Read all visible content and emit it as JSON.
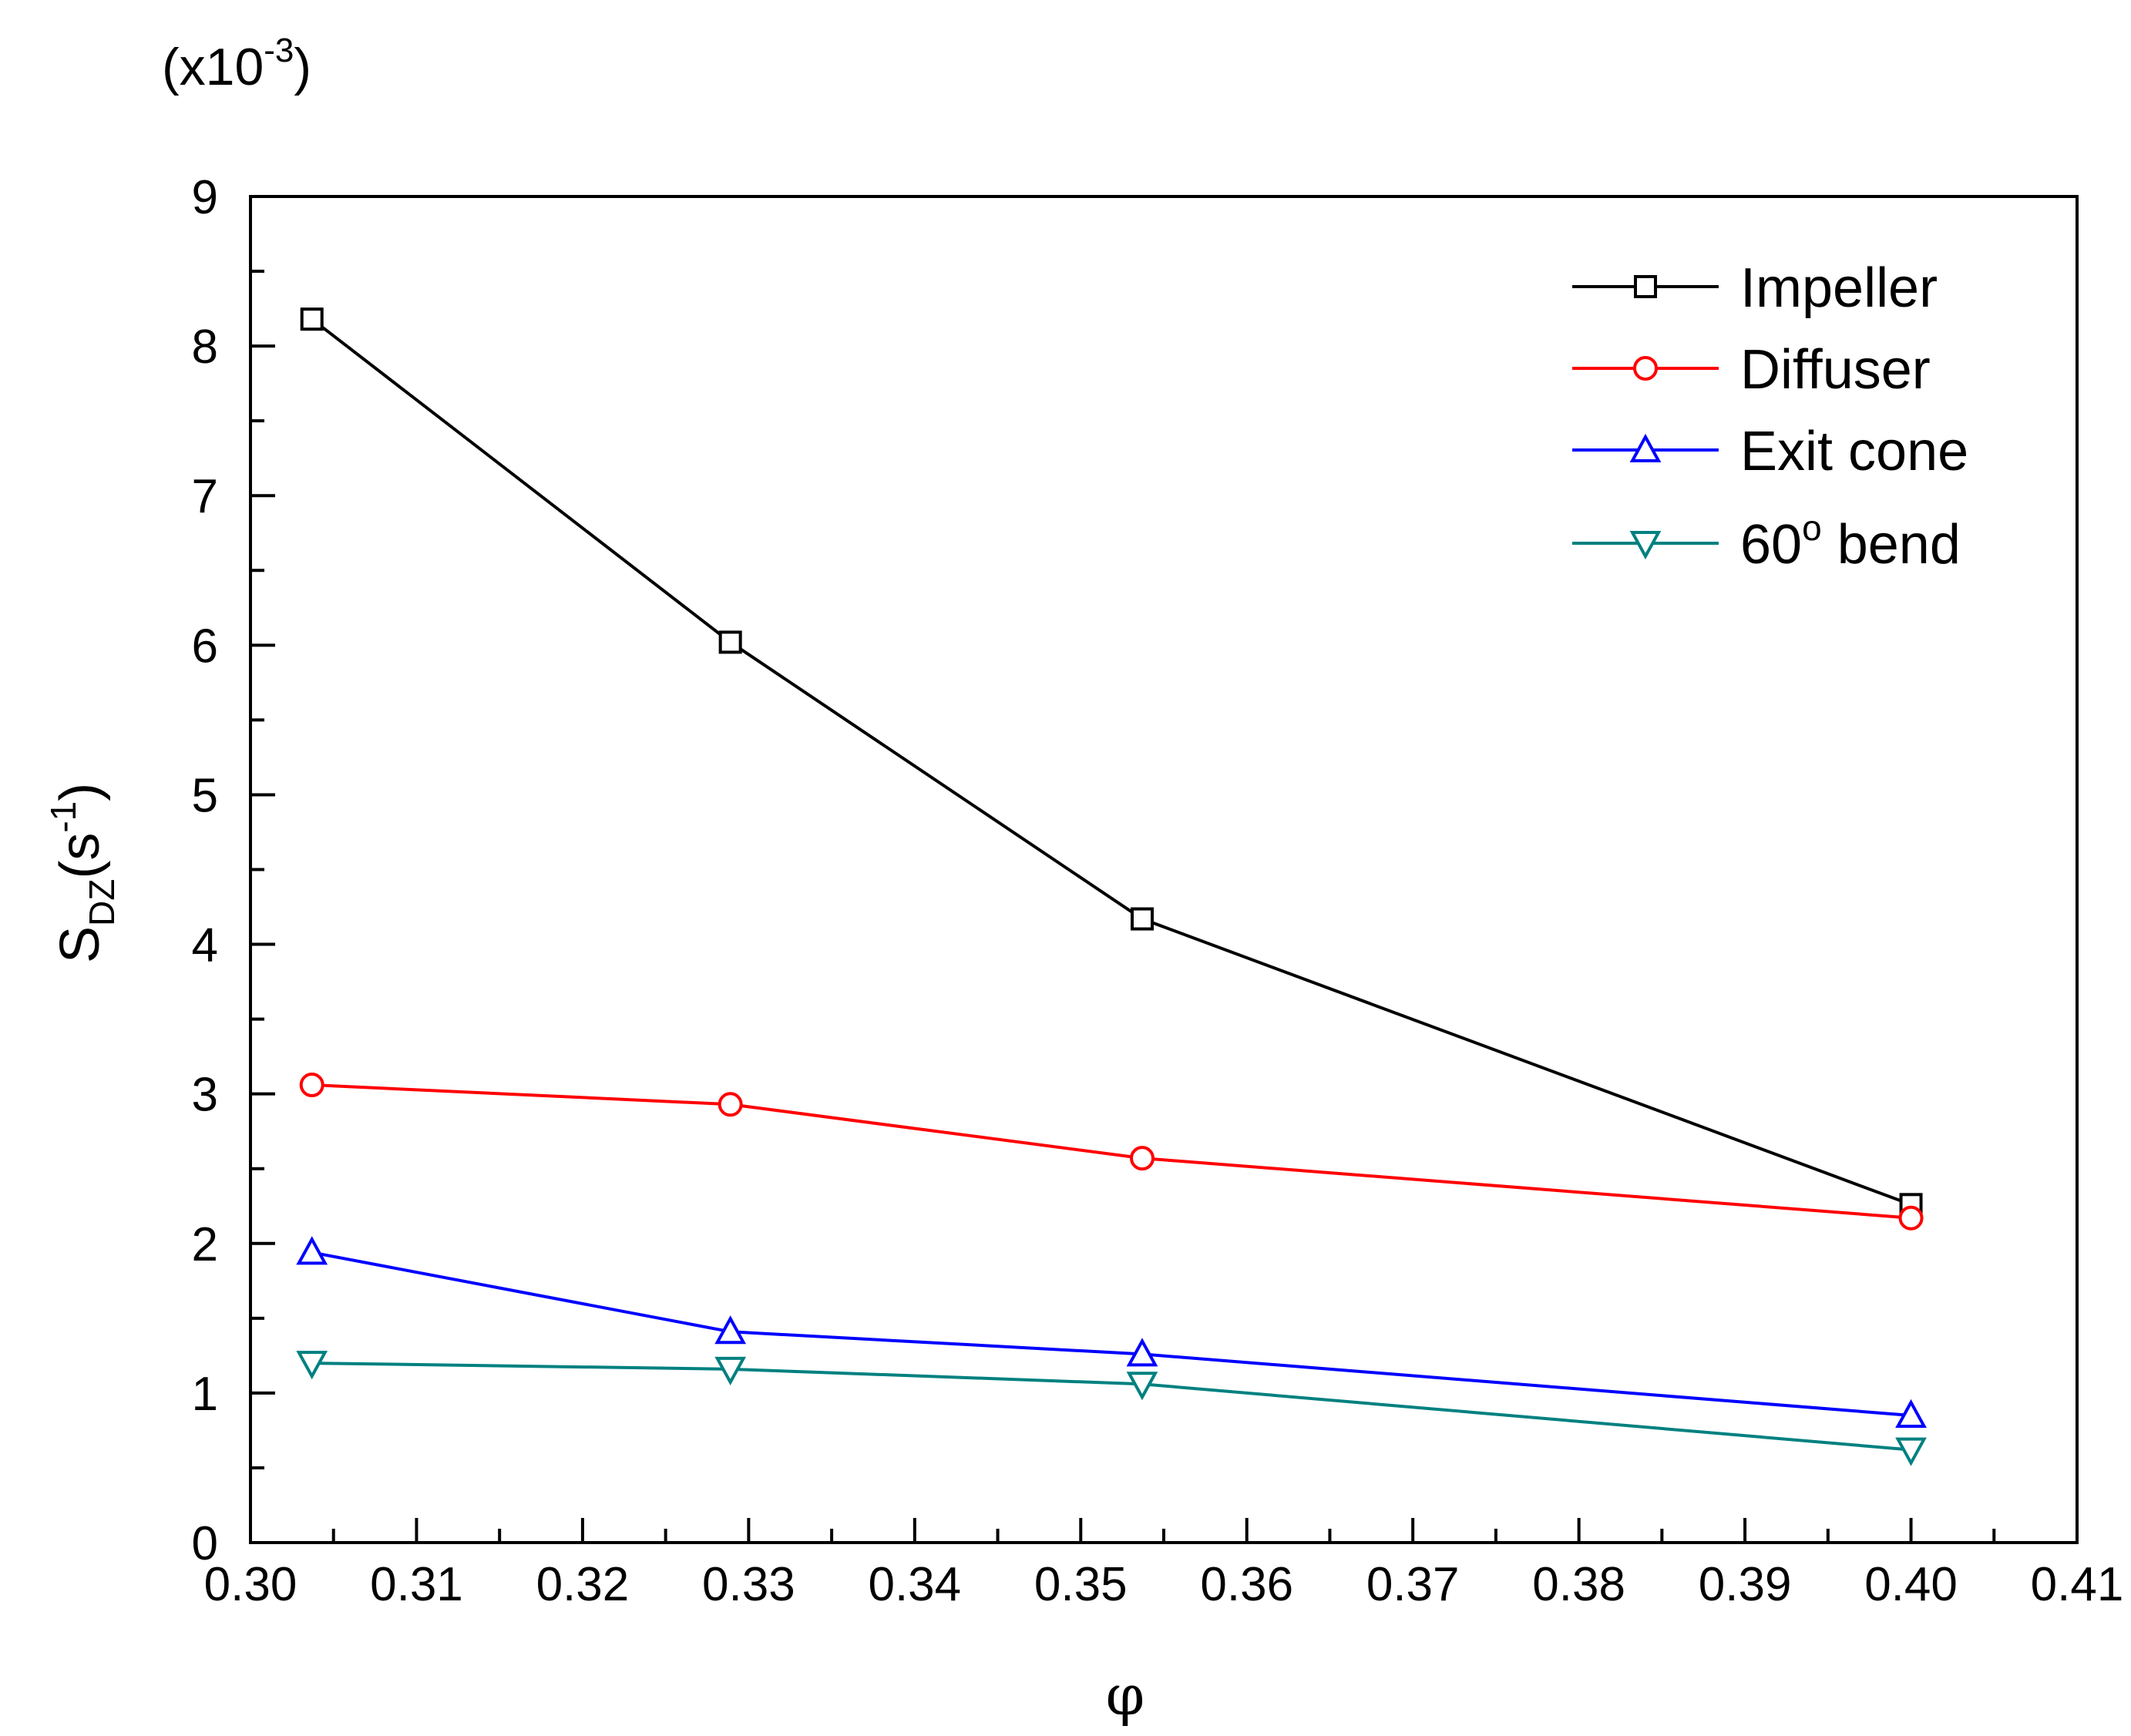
{
  "chart_data": {
    "type": "line",
    "title": "",
    "scale_label": {
      "base": "(x10",
      "exponent": "-3",
      "close": ")"
    },
    "xlabel": "φ",
    "ylabel": {
      "main": "S",
      "subscript": "DZ",
      "unit_open": "(s",
      "unit_exponent": "-1",
      "unit_close": ")"
    },
    "xlim": [
      0.3,
      0.41
    ],
    "ylim": [
      0,
      9
    ],
    "x_ticks": [
      0.3,
      0.31,
      0.32,
      0.33,
      0.34,
      0.35,
      0.36,
      0.37,
      0.38,
      0.39,
      0.4,
      0.41
    ],
    "x_tick_labels": [
      "0.30",
      "0.31",
      "0.32",
      "0.33",
      "0.34",
      "0.35",
      "0.36",
      "0.37",
      "0.38",
      "0.39",
      "0.40",
      "0.41"
    ],
    "y_ticks": [
      0,
      1,
      2,
      3,
      4,
      5,
      6,
      7,
      8,
      9
    ],
    "y_tick_labels": [
      "0",
      "1",
      "2",
      "3",
      "4",
      "5",
      "6",
      "7",
      "8",
      "9"
    ],
    "x": [
      0.3037,
      0.3289,
      0.3537,
      0.4
    ],
    "grid": false,
    "legend_position": "top-right",
    "series": [
      {
        "name": "Impeller",
        "marker": "square",
        "color": "#000000",
        "values": [
          8.18,
          6.02,
          4.17,
          2.26
        ]
      },
      {
        "name": "Diffuser",
        "marker": "circle",
        "color": "#ff0000",
        "values": [
          3.06,
          2.93,
          2.57,
          2.17
        ]
      },
      {
        "name": "Exit cone",
        "marker": "triangle-up",
        "color": "#0000ff",
        "values": [
          1.94,
          1.41,
          1.26,
          0.85
        ]
      },
      {
        "name": "60° bend",
        "label_main": "60",
        "label_sup": "o",
        "label_rest": " bend",
        "marker": "triangle-down",
        "color": "#008080",
        "values": [
          1.2,
          1.16,
          1.06,
          0.62
        ]
      }
    ]
  }
}
